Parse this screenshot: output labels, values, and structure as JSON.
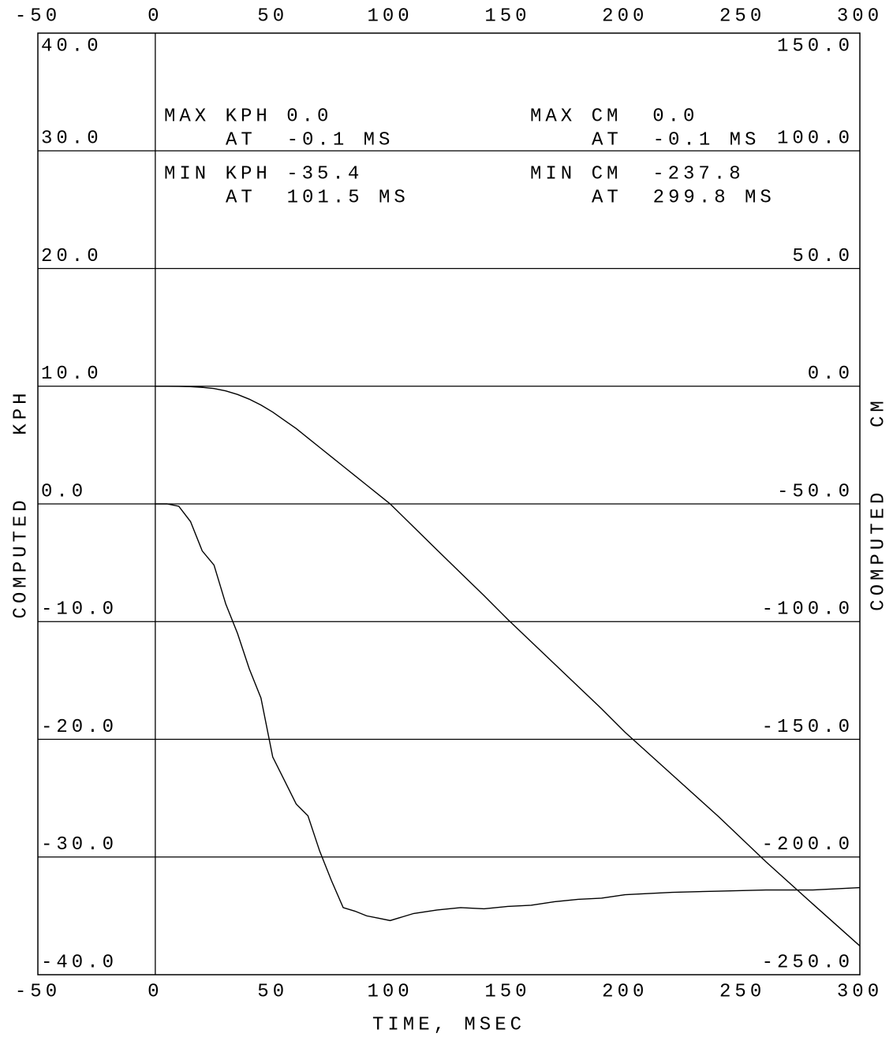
{
  "chart_data": {
    "type": "line",
    "xlabel": "TIME, MSEC",
    "ylabel": "COMPUTED    KPH",
    "y2label": "COMPUTED    CM",
    "annotations": [
      "MAX KPH 0.0",
      "AT  -0.1 MS",
      "MIN KPH -35.4",
      "AT  101.5 MS",
      "MAX CM  0.0",
      "AT  -0.1 MS",
      "MIN CM  -237.8",
      "AT  299.8 MS"
    ],
    "x": [
      0,
      5,
      10,
      15,
      20,
      25,
      30,
      35,
      40,
      45,
      50,
      55,
      60,
      65,
      70,
      75,
      80,
      85,
      90,
      95,
      100,
      110,
      120,
      130,
      140,
      150,
      160,
      170,
      180,
      190,
      200,
      220,
      240,
      260,
      280,
      300
    ],
    "series": [
      {
        "name": "KPH",
        "color": "#000000",
        "axis": "y",
        "values": [
          0,
          0,
          -0.2,
          -1.5,
          -4,
          -5.2,
          -8.5,
          -11,
          -14,
          -16.5,
          -21.5,
          -23.5,
          -25.5,
          -26.5,
          -29.5,
          -32,
          -34.3,
          -34.6,
          -35,
          -35.2,
          -35.4,
          -34.8,
          -34.5,
          -34.3,
          -34.4,
          -34.2,
          -34.1,
          -33.8,
          -33.6,
          -33.5,
          -33.2,
          -33,
          -32.9,
          -32.8,
          -32.8,
          -32.6
        ]
      },
      {
        "name": "CM",
        "color": "#000000",
        "axis": "y2",
        "values": [
          0,
          0,
          -0.05,
          -0.2,
          -0.5,
          -1,
          -2,
          -3.5,
          -5.5,
          -8,
          -11,
          -14.5,
          -18,
          -22,
          -26,
          -30,
          -34,
          -38,
          -42,
          -46,
          -50,
          -59.8,
          -69.6,
          -79.3,
          -89,
          -99,
          -108.5,
          -118,
          -127.5,
          -137,
          -147,
          -165,
          -183,
          -202,
          -220,
          -237.8
        ]
      }
    ],
    "xlim": [
      -50,
      300
    ],
    "xticks": [
      -50,
      0,
      50,
      100,
      150,
      200,
      250,
      300
    ],
    "ylim": [
      -40,
      40
    ],
    "yticks": [
      {
        "value": 40,
        "label": "40.0"
      },
      {
        "value": 30,
        "label": "30.0"
      },
      {
        "value": 20,
        "label": "20.0"
      },
      {
        "value": 10,
        "label": "10.0"
      },
      {
        "value": 0,
        "label": "0.0"
      },
      {
        "value": -10,
        "label": "-10.0"
      },
      {
        "value": -20,
        "label": "-20.0"
      },
      {
        "value": -30,
        "label": "-30.0"
      },
      {
        "value": -40,
        "label": "-40.0"
      }
    ],
    "y2lim": [
      -250,
      150
    ],
    "y2ticks": [
      {
        "value": 150,
        "label": "150.0"
      },
      {
        "value": 100,
        "label": "100.0"
      },
      {
        "value": 50,
        "label": "50.0"
      },
      {
        "value": 0,
        "label": "0.0"
      },
      {
        "value": -50,
        "label": "-50.0"
      },
      {
        "value": -100,
        "label": "-100.0"
      },
      {
        "value": -150,
        "label": "-150.0"
      },
      {
        "value": -200,
        "label": "-200.0"
      },
      {
        "value": -250,
        "label": "-250.0"
      }
    ],
    "grid": true
  }
}
